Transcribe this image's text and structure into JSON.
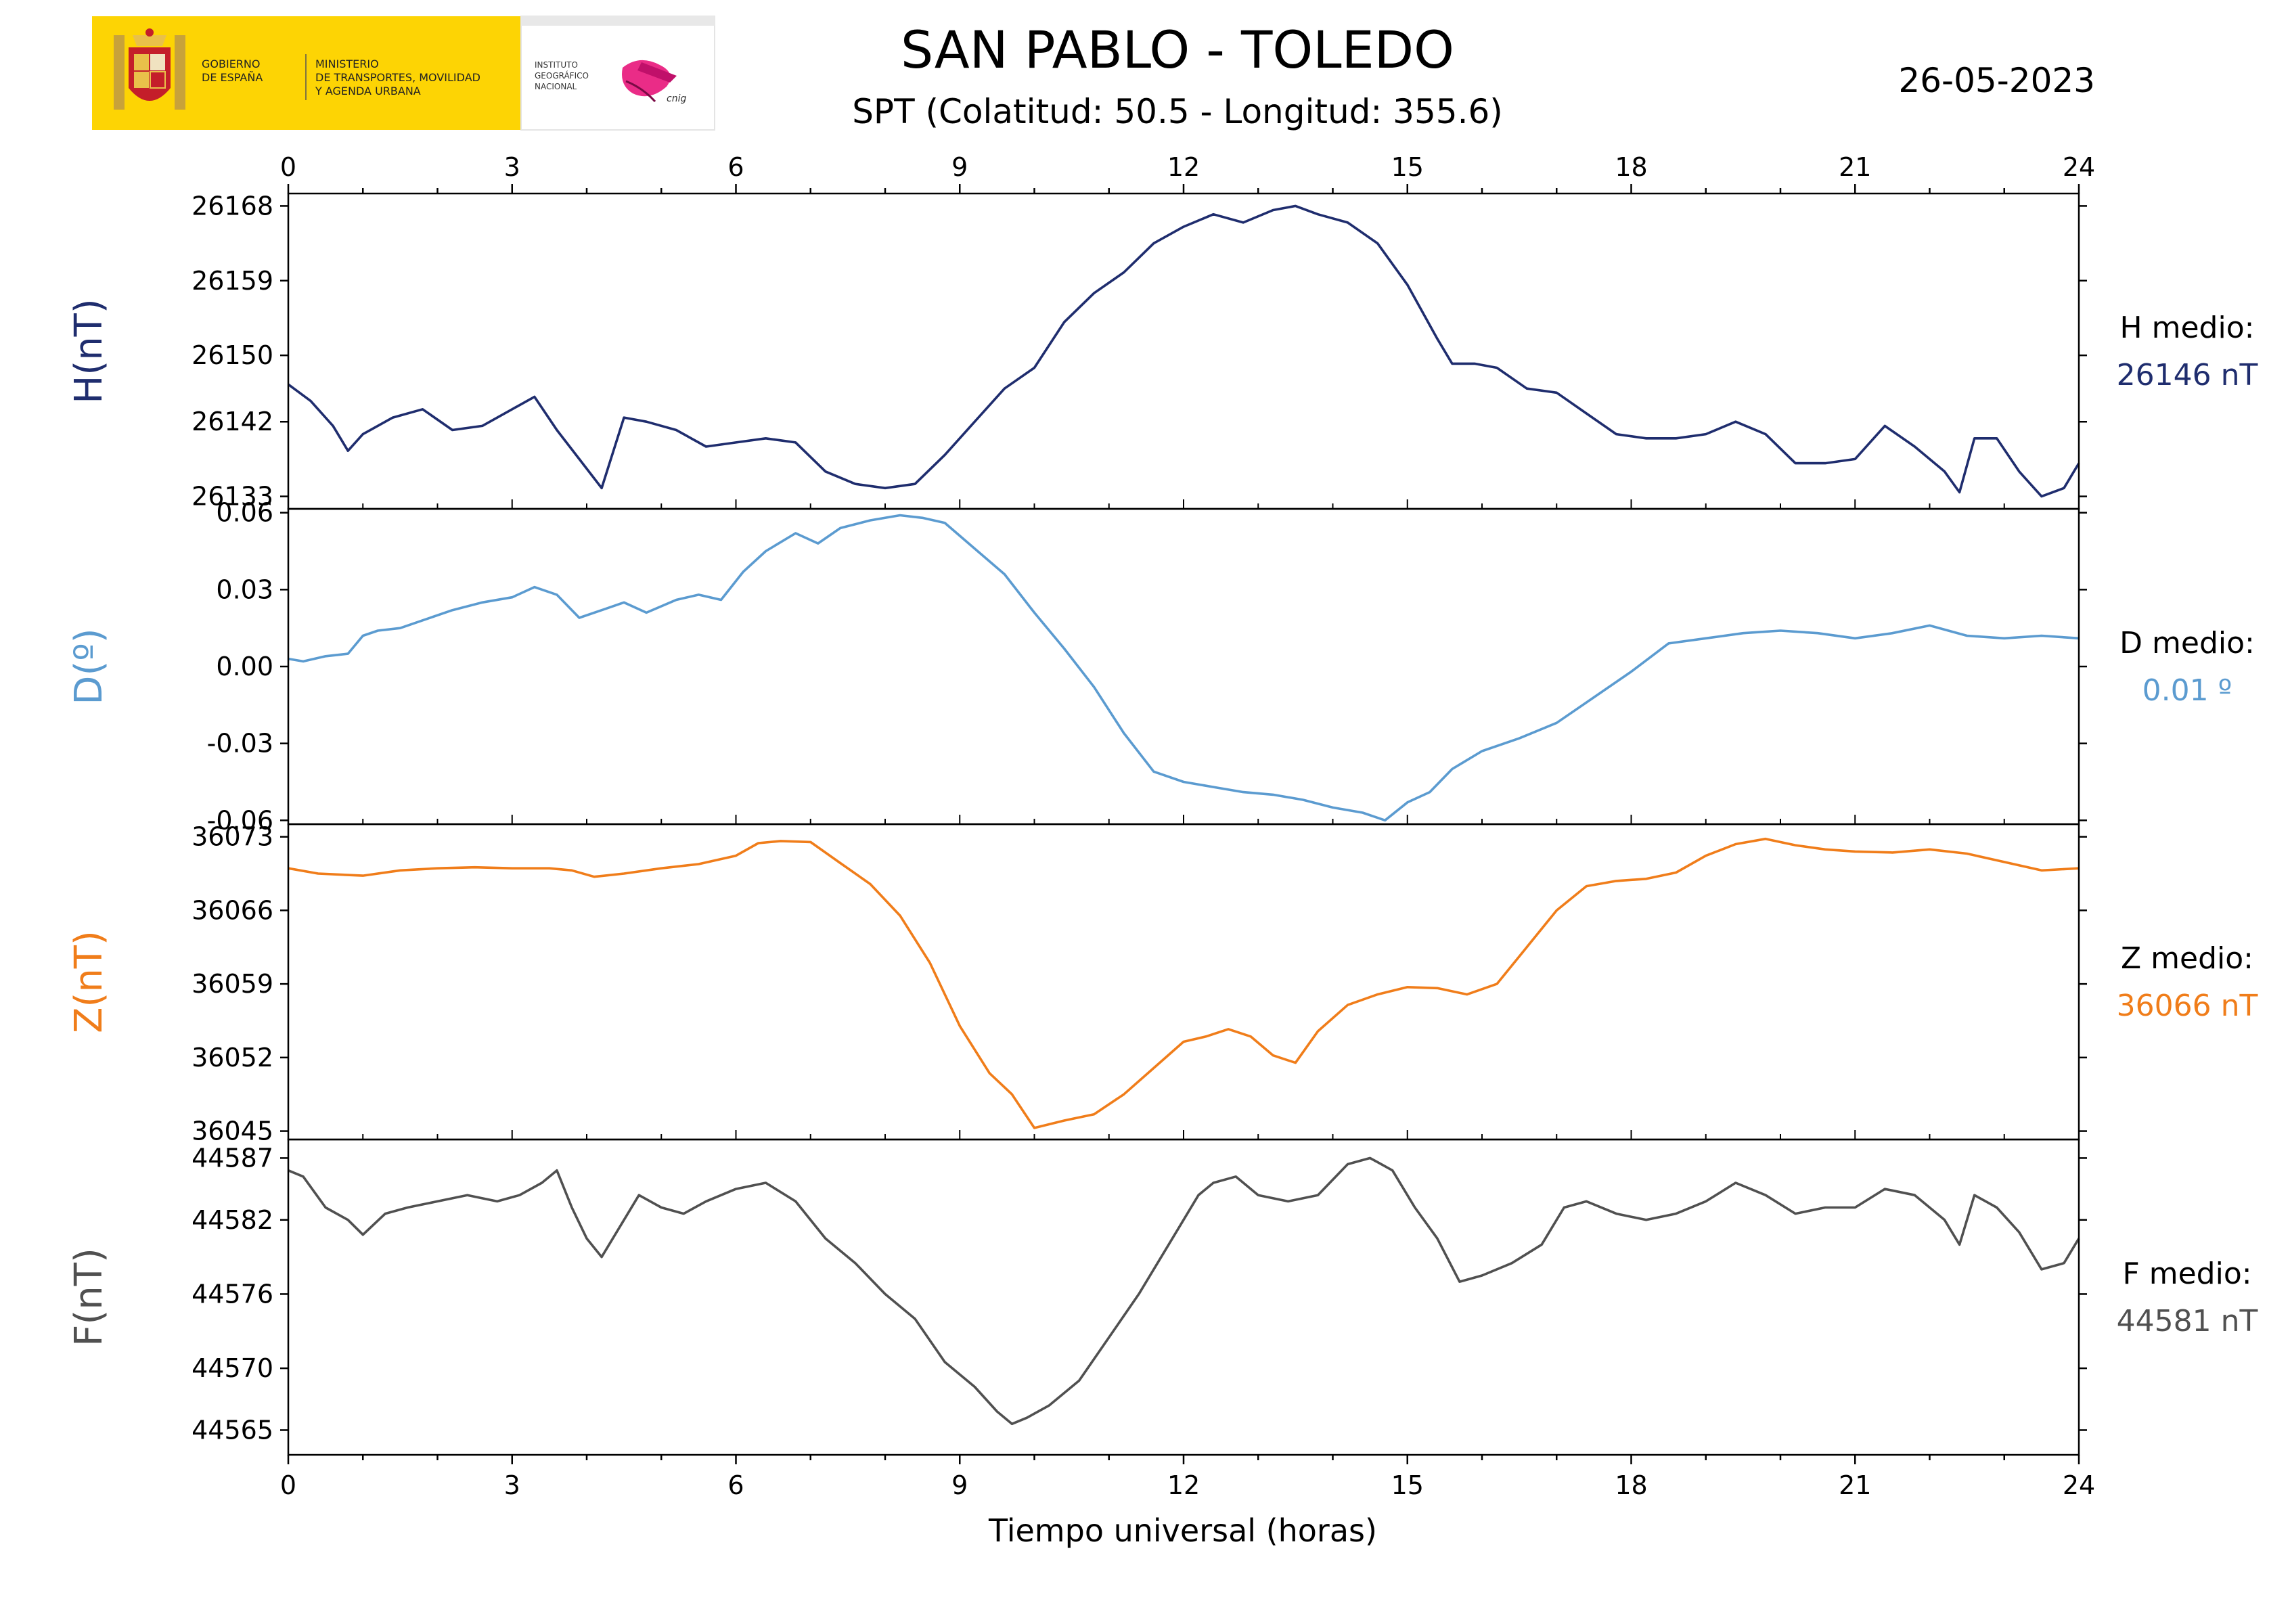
{
  "header": {
    "logo": {
      "gov_line1": "GOBIERNO",
      "gov_line2": "DE ESPAÑA",
      "min_line1": "MINISTERIO",
      "min_line2": "DE TRANSPORTES, MOVILIDAD",
      "min_line3": "Y AGENDA URBANA",
      "ign_line1": "INSTITUTO",
      "ign_line2": "GEOGRÁFICO",
      "ign_line3": "NACIONAL",
      "cnig_text": "cnig"
    },
    "title": "SAN PABLO - TOLEDO",
    "subtitle": "SPT (Colatitud: 50.5 - Longitud: 355.6)",
    "date": "26-05-2023"
  },
  "chart_data": {
    "type": "line",
    "xlabel": "Tiempo universal (horas)",
    "xlim": [
      0,
      24
    ],
    "xticks": [
      0,
      3,
      6,
      9,
      12,
      15,
      18,
      21,
      24
    ],
    "panels": [
      {
        "key": "H",
        "ylabel": "H(nT)",
        "color": "#1f2d6e",
        "ylim": [
          26131.5,
          26169.5
        ],
        "yticks": [
          26133,
          26142,
          26150,
          26159,
          26168
        ],
        "mean_label": "H medio:",
        "mean_value": "26146 nT",
        "x": [
          0,
          0.3,
          0.6,
          0.8,
          1.0,
          1.4,
          1.8,
          2.2,
          2.6,
          3.0,
          3.3,
          3.6,
          3.9,
          4.2,
          4.5,
          4.8,
          5.2,
          5.6,
          6.0,
          6.4,
          6.8,
          7.2,
          7.6,
          8.0,
          8.4,
          8.8,
          9.2,
          9.6,
          10.0,
          10.4,
          10.8,
          11.2,
          11.6,
          12.0,
          12.4,
          12.8,
          13.2,
          13.5,
          13.8,
          14.2,
          14.6,
          15.0,
          15.4,
          15.6,
          15.9,
          16.2,
          16.6,
          17.0,
          17.4,
          17.8,
          18.2,
          18.6,
          19.0,
          19.4,
          19.8,
          20.2,
          20.6,
          21.0,
          21.4,
          21.8,
          22.2,
          22.4,
          22.6,
          22.9,
          23.2,
          23.5,
          23.8,
          24.0
        ],
        "values": [
          26146.5,
          26144.5,
          26141.5,
          26138.5,
          26140.5,
          26142.5,
          26143.5,
          26141.0,
          26141.5,
          26143.5,
          26145.0,
          26141.0,
          26137.5,
          26134.0,
          26142.5,
          26142.0,
          26141.0,
          26139.0,
          26139.5,
          26140.0,
          26139.5,
          26136.0,
          26134.5,
          26134.0,
          26134.5,
          26138.0,
          26142.0,
          26146.0,
          26148.5,
          26154.0,
          26157.5,
          26160.0,
          26163.5,
          26165.5,
          26167.0,
          26166.0,
          26167.5,
          26168.0,
          26167.0,
          26166.0,
          26163.5,
          26158.5,
          26152.0,
          26149.0,
          26149.0,
          26148.5,
          26146.0,
          26145.5,
          26143.0,
          26140.5,
          26140.0,
          26140.0,
          26140.5,
          26142.0,
          26140.5,
          26137.0,
          26137.0,
          26137.5,
          26141.5,
          26139.0,
          26136.0,
          26133.5,
          26140.0,
          26140.0,
          26136.0,
          26133.0,
          26134.0,
          26137.0
        ]
      },
      {
        "key": "D",
        "ylabel": "D(º)",
        "color": "#5b9bd0",
        "ylim": [
          -0.0615,
          0.0615
        ],
        "yticks": [
          -0.06,
          -0.03,
          0.0,
          0.03,
          0.06
        ],
        "tick_labels": [
          "-0.06",
          "-0.03",
          "0.00",
          "0.03",
          "0.06"
        ],
        "mean_label": "D medio:",
        "mean_value": "0.01 º",
        "x": [
          0,
          0.2,
          0.5,
          0.8,
          1.0,
          1.2,
          1.5,
          1.8,
          2.2,
          2.6,
          3.0,
          3.3,
          3.6,
          3.9,
          4.2,
          4.5,
          4.8,
          5.2,
          5.5,
          5.8,
          6.1,
          6.4,
          6.8,
          7.1,
          7.4,
          7.8,
          8.2,
          8.5,
          8.8,
          9.2,
          9.6,
          10.0,
          10.4,
          10.8,
          11.2,
          11.6,
          12.0,
          12.4,
          12.8,
          13.2,
          13.6,
          14.0,
          14.4,
          14.7,
          15.0,
          15.3,
          15.6,
          16.0,
          16.5,
          17.0,
          17.5,
          18.0,
          18.5,
          19.0,
          19.5,
          20.0,
          20.5,
          21.0,
          21.5,
          22.0,
          22.5,
          23.0,
          23.5,
          24.0
        ],
        "values": [
          0.003,
          0.002,
          0.004,
          0.005,
          0.012,
          0.014,
          0.015,
          0.018,
          0.022,
          0.025,
          0.027,
          0.031,
          0.028,
          0.019,
          0.022,
          0.025,
          0.021,
          0.026,
          0.028,
          0.026,
          0.037,
          0.045,
          0.052,
          0.048,
          0.054,
          0.057,
          0.059,
          0.058,
          0.056,
          0.046,
          0.036,
          0.021,
          0.007,
          -0.008,
          -0.026,
          -0.041,
          -0.045,
          -0.047,
          -0.049,
          -0.05,
          -0.052,
          -0.055,
          -0.057,
          -0.06,
          -0.053,
          -0.049,
          -0.04,
          -0.033,
          -0.028,
          -0.022,
          -0.012,
          -0.002,
          0.009,
          0.011,
          0.013,
          0.014,
          0.013,
          0.011,
          0.013,
          0.016,
          0.012,
          0.011,
          0.012,
          0.011
        ]
      },
      {
        "key": "Z",
        "ylabel": "Z(nT)",
        "color": "#f07d1a",
        "ylim": [
          36044.2,
          36074.2
        ],
        "yticks": [
          36045,
          36052,
          36059,
          36066,
          36073
        ],
        "mean_label": "Z medio:",
        "mean_value": "36066 nT",
        "x": [
          0,
          0.4,
          1.0,
          1.5,
          2.0,
          2.5,
          3.0,
          3.5,
          3.8,
          4.1,
          4.5,
          5.0,
          5.5,
          6.0,
          6.3,
          6.6,
          7.0,
          7.4,
          7.8,
          8.2,
          8.6,
          9.0,
          9.4,
          9.7,
          10.0,
          10.4,
          10.8,
          11.2,
          11.6,
          12.0,
          12.3,
          12.6,
          12.9,
          13.2,
          13.5,
          13.8,
          14.2,
          14.6,
          15.0,
          15.4,
          15.8,
          16.2,
          16.6,
          17.0,
          17.4,
          17.8,
          18.2,
          18.6,
          19.0,
          19.4,
          19.8,
          20.2,
          20.6,
          21.0,
          21.5,
          22.0,
          22.5,
          23.0,
          23.5,
          24.0
        ],
        "values": [
          36070.0,
          36069.5,
          36069.3,
          36069.8,
          36070.0,
          36070.1,
          36070.0,
          36070.0,
          36069.8,
          36069.2,
          36069.5,
          36070.0,
          36070.4,
          36071.2,
          36072.4,
          36072.6,
          36072.5,
          36070.5,
          36068.5,
          36065.5,
          36061.0,
          36055.0,
          36050.5,
          36048.5,
          36045.3,
          36046.0,
          36046.6,
          36048.5,
          36051.0,
          36053.5,
          36054.0,
          36054.7,
          36054.0,
          36052.2,
          36051.5,
          36054.5,
          36057.0,
          36058.0,
          36058.7,
          36058.6,
          36058.0,
          36059.0,
          36062.5,
          36066.0,
          36068.3,
          36068.8,
          36069.0,
          36069.6,
          36071.2,
          36072.3,
          36072.8,
          36072.2,
          36071.8,
          36071.6,
          36071.5,
          36071.8,
          36071.4,
          36070.6,
          36069.8,
          36070.0
        ]
      },
      {
        "key": "F",
        "ylabel": "F(nT)",
        "color": "#505050",
        "ylim": [
          44563.0,
          44588.5
        ],
        "yticks": [
          44565,
          44570,
          44576,
          44582,
          44587
        ],
        "mean_label": "F medio:",
        "mean_value": "44581 nT",
        "x": [
          0,
          0.2,
          0.5,
          0.8,
          1.0,
          1.3,
          1.6,
          2.0,
          2.4,
          2.8,
          3.1,
          3.4,
          3.6,
          3.8,
          4.0,
          4.2,
          4.4,
          4.7,
          5.0,
          5.3,
          5.6,
          6.0,
          6.4,
          6.8,
          7.2,
          7.6,
          8.0,
          8.4,
          8.8,
          9.2,
          9.5,
          9.7,
          9.9,
          10.2,
          10.6,
          11.0,
          11.4,
          11.8,
          12.2,
          12.4,
          12.7,
          13.0,
          13.4,
          13.8,
          14.2,
          14.5,
          14.8,
          15.1,
          15.4,
          15.7,
          16.0,
          16.4,
          16.8,
          17.1,
          17.4,
          17.8,
          18.2,
          18.6,
          19.0,
          19.4,
          19.8,
          20.2,
          20.6,
          21.0,
          21.4,
          21.8,
          22.2,
          22.4,
          22.6,
          22.9,
          23.2,
          23.5,
          23.8,
          24.0
        ],
        "values": [
          44586.0,
          44585.5,
          44583.0,
          44582.0,
          44580.8,
          44582.5,
          44583.0,
          44583.5,
          44584.0,
          44583.5,
          44584.0,
          44585.0,
          44586.0,
          44583.0,
          44580.5,
          44579.0,
          44581.0,
          44584.0,
          44583.0,
          44582.5,
          44583.5,
          44584.5,
          44585.0,
          44583.5,
          44580.5,
          44578.5,
          44576.0,
          44574.0,
          44570.5,
          44568.5,
          44566.5,
          44565.5,
          44566.0,
          44567.0,
          44569.0,
          44572.5,
          44576.0,
          44580.0,
          44584.0,
          44585.0,
          44585.5,
          44584.0,
          44583.5,
          44584.0,
          44586.5,
          44587.0,
          44586.0,
          44583.0,
          44580.5,
          44577.0,
          44577.5,
          44578.5,
          44580.0,
          44583.0,
          44583.5,
          44582.5,
          44582.0,
          44582.5,
          44583.5,
          44585.0,
          44584.0,
          44582.5,
          44583.0,
          44583.0,
          44584.5,
          44584.0,
          44582.0,
          44580.0,
          44584.0,
          44583.0,
          44581.0,
          44578.0,
          44578.5,
          44580.5
        ]
      }
    ]
  }
}
